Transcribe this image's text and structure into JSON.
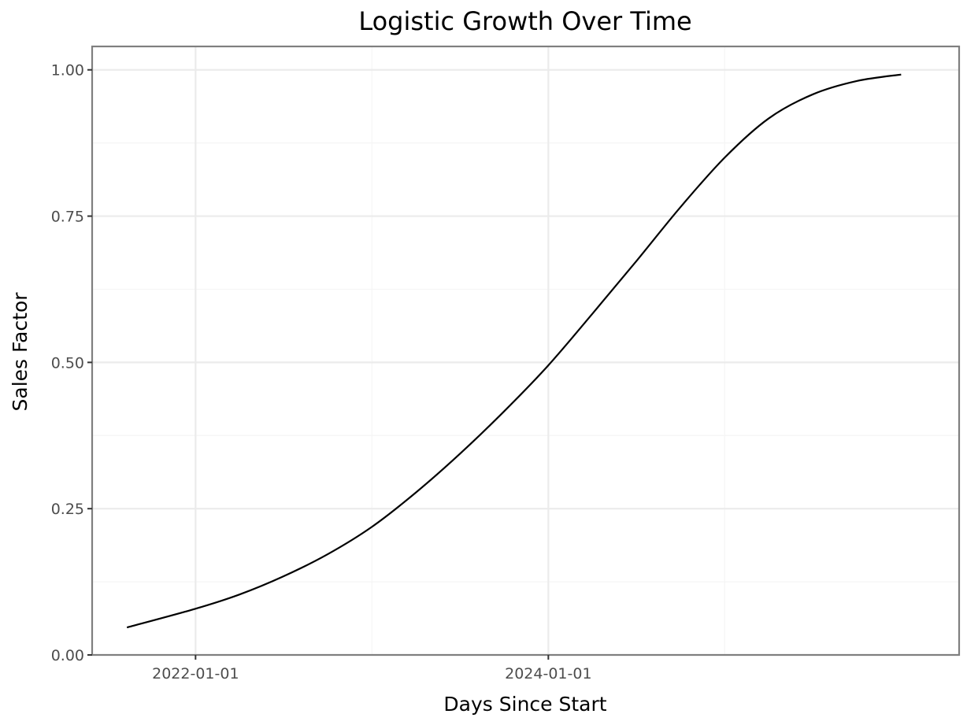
{
  "chart_data": {
    "type": "line",
    "title": "Logistic Growth Over Time",
    "xlabel": "Days Since Start",
    "ylabel": "Sales Factor",
    "x_ticks": [
      "2022-01-01",
      "2024-01-01"
    ],
    "y_ticks": [
      "0.00",
      "0.25",
      "0.50",
      "0.75",
      "1.00"
    ],
    "xlim": [
      "2021-06-01",
      "2026-04-30"
    ],
    "ylim": [
      0,
      1.04
    ],
    "grid": true,
    "legend": "none",
    "series": [
      {
        "x": [
          "2021-08-12",
          "2022-01-01",
          "2022-04-01",
          "2022-07-01",
          "2022-10-01",
          "2023-01-01",
          "2023-04-01",
          "2023-07-01",
          "2023-10-01",
          "2024-01-01",
          "2024-04-01",
          "2024-07-01",
          "2024-10-01",
          "2025-01-01",
          "2025-04-01",
          "2025-07-01",
          "2025-10-01",
          "2025-12-31"
        ],
        "y": [
          0.047,
          0.079,
          0.103,
          0.134,
          0.172,
          0.219,
          0.277,
          0.343,
          0.416,
          0.495,
          0.583,
          0.673,
          0.766,
          0.851,
          0.917,
          0.958,
          0.981,
          0.992
        ]
      }
    ],
    "colors": {
      "line": "#000000",
      "panel_border": "#7f7f7f",
      "grid_major": "#ebebeb",
      "grid_minor": "#f5f5f5",
      "tick_text": "#4d4d4d"
    }
  }
}
